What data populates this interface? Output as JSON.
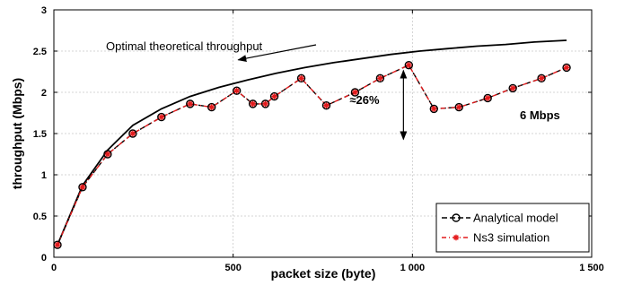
{
  "chart_data": {
    "type": "line",
    "xlabel": "packet size (byte)",
    "ylabel": "throughput (Mbps)",
    "xlim": [
      0,
      1500
    ],
    "ylim": [
      0,
      3
    ],
    "x_ticks": [
      0,
      500,
      1000,
      1500
    ],
    "x_tick_labels": [
      "0",
      "500",
      "1 000",
      "1 500"
    ],
    "y_ticks": [
      0,
      0.5,
      1,
      1.5,
      2,
      2.5,
      3
    ],
    "y_tick_labels": [
      "0",
      "0.5",
      "1",
      "1.5",
      "2",
      "2.5",
      "3"
    ],
    "grid": true,
    "legend_position": "bottom-right",
    "series": [
      {
        "name": "Analytical model",
        "color": "#000000",
        "marker": "circle",
        "x": [
          10,
          80,
          150,
          220,
          300,
          380,
          440,
          510,
          555,
          590,
          615,
          690,
          760,
          840,
          910,
          990,
          1060,
          1130,
          1210,
          1280,
          1360,
          1430
        ],
        "values": [
          0.15,
          0.85,
          1.25,
          1.5,
          1.7,
          1.86,
          1.82,
          2.02,
          1.86,
          1.86,
          1.95,
          2.17,
          1.84,
          2.0,
          2.17,
          2.33,
          1.8,
          1.82,
          1.93,
          2.05,
          2.17,
          2.3
        ]
      },
      {
        "name": "Ns3 simulation",
        "color": "#e41a1c",
        "marker": "asterisk",
        "x": [
          10,
          80,
          150,
          220,
          300,
          380,
          440,
          510,
          555,
          590,
          615,
          690,
          760,
          840,
          910,
          990,
          1060,
          1130,
          1210,
          1280,
          1360,
          1430
        ],
        "values": [
          0.15,
          0.85,
          1.25,
          1.5,
          1.7,
          1.86,
          1.82,
          2.02,
          1.86,
          1.86,
          1.95,
          2.17,
          1.84,
          2.0,
          2.17,
          2.33,
          1.8,
          1.82,
          1.93,
          2.05,
          2.17,
          2.3
        ]
      },
      {
        "name": "",
        "color": "#000000",
        "marker": "none",
        "x": [
          10,
          80,
          150,
          220,
          300,
          380,
          460,
          540,
          620,
          700,
          780,
          860,
          940,
          1020,
          1100,
          1180,
          1260,
          1340,
          1430
        ],
        "values": [
          0.15,
          0.87,
          1.3,
          1.6,
          1.8,
          1.95,
          2.06,
          2.15,
          2.23,
          2.3,
          2.36,
          2.41,
          2.46,
          2.5,
          2.53,
          2.56,
          2.58,
          2.61,
          2.63
        ]
      }
    ],
    "annotations": {
      "optimal_label": "Optimal theoretical throughput",
      "gap_label": "≈26%",
      "rate_label": "6 Mbps",
      "gap_x": 975,
      "gap_y_low": 1.43,
      "gap_y_high": 2.33,
      "optimal_arrow_tip": [
        990,
        2.48
      ]
    }
  }
}
